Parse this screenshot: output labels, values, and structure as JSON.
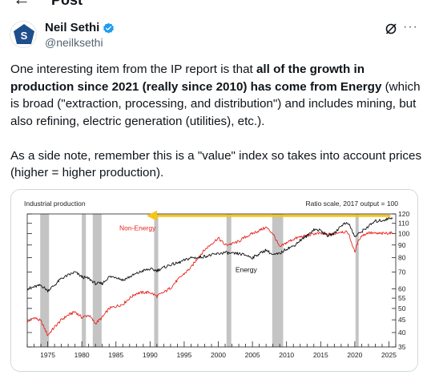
{
  "header": {
    "title": "Post",
    "back_icon": "back-arrow-icon"
  },
  "author": {
    "name": "Neil Sethi",
    "handle": "@neilksethi",
    "verified_color": "#1d9bf0"
  },
  "post": {
    "p1_lead": "One interesting item from the IP report is that ",
    "p1_bold": "all of the growth in production since 2021 (really since 2010) has come from Energy",
    "p1_tail": " (which is broad (\"extraction, processing, and distribution\") and includes mining, but also refining, electric generation (utilities), etc.).",
    "p2": "As a side note, remember this is a \"value\" index so takes into account prices (higher = higher production)."
  },
  "chart_data": {
    "type": "line",
    "title": "Industrial production",
    "subtitle": "Ratio scale, 2017 output = 100",
    "x_ticks": [
      "1975",
      "1980",
      "1985",
      "1990",
      "1995",
      "2000",
      "2005",
      "2010",
      "2015",
      "2020",
      "2025"
    ],
    "y_ticks": [
      35,
      40,
      45,
      50,
      55,
      60,
      70,
      80,
      90,
      100,
      110,
      120
    ],
    "ylim": [
      35,
      120
    ],
    "xlim": [
      1972,
      2026
    ],
    "scale": "log",
    "recessions": [
      [
        1973.9,
        1975.2
      ],
      [
        1980.0,
        1980.6
      ],
      [
        1981.6,
        1982.9
      ],
      [
        1990.6,
        1991.2
      ],
      [
        2001.2,
        2001.9
      ],
      [
        2007.9,
        2009.5
      ],
      [
        2020.1,
        2020.4
      ]
    ],
    "annotation_arrow_color": "#f5c518",
    "series": [
      {
        "name": "Non-Energy",
        "color": "#e8251f",
        "points": [
          [
            1972,
            44
          ],
          [
            1973,
            46
          ],
          [
            1974,
            44.5
          ],
          [
            1975,
            39
          ],
          [
            1976,
            42
          ],
          [
            1977,
            45
          ],
          [
            1978,
            47
          ],
          [
            1979,
            48.5
          ],
          [
            1980,
            46
          ],
          [
            1981,
            47
          ],
          [
            1982,
            43.5
          ],
          [
            1983,
            46
          ],
          [
            1984,
            50
          ],
          [
            1985,
            51
          ],
          [
            1986,
            52
          ],
          [
            1987,
            55
          ],
          [
            1988,
            57.5
          ],
          [
            1989,
            58
          ],
          [
            1990,
            58
          ],
          [
            1991,
            56
          ],
          [
            1992,
            58
          ],
          [
            1993,
            60.5
          ],
          [
            1994,
            65
          ],
          [
            1995,
            69
          ],
          [
            1996,
            73
          ],
          [
            1997,
            80
          ],
          [
            1998,
            86
          ],
          [
            1999,
            91
          ],
          [
            2000,
            96
          ],
          [
            2001,
            90
          ],
          [
            2002,
            91
          ],
          [
            2003,
            93
          ],
          [
            2004,
            97
          ],
          [
            2005,
            100
          ],
          [
            2006,
            103
          ],
          [
            2007,
            106
          ],
          [
            2008,
            100
          ],
          [
            2009,
            88
          ],
          [
            2010,
            92
          ],
          [
            2011,
            95
          ],
          [
            2012,
            97
          ],
          [
            2013,
            98
          ],
          [
            2014,
            100
          ],
          [
            2015,
            100
          ],
          [
            2016,
            99
          ],
          [
            2017,
            100
          ],
          [
            2018,
            102
          ],
          [
            2019,
            101
          ],
          [
            2020,
            84
          ],
          [
            2020.6,
            95
          ],
          [
            2021,
            98
          ],
          [
            2022,
            101
          ],
          [
            2023,
            100
          ],
          [
            2024,
            100
          ],
          [
            2025.5,
            101
          ]
        ]
      },
      {
        "name": "Energy",
        "color": "#111111",
        "points": [
          [
            1972,
            60
          ],
          [
            1973,
            61
          ],
          [
            1974,
            62
          ],
          [
            1975,
            59
          ],
          [
            1976,
            62
          ],
          [
            1977,
            66
          ],
          [
            1978,
            68
          ],
          [
            1979,
            70
          ],
          [
            1980,
            67
          ],
          [
            1981,
            66
          ],
          [
            1982,
            63
          ],
          [
            1983,
            63
          ],
          [
            1984,
            67
          ],
          [
            1985,
            67
          ],
          [
            1986,
            65
          ],
          [
            1987,
            67
          ],
          [
            1988,
            69
          ],
          [
            1989,
            71
          ],
          [
            1990,
            72
          ],
          [
            1991,
            71
          ],
          [
            1992,
            73
          ],
          [
            1993,
            75
          ],
          [
            1994,
            76
          ],
          [
            1995,
            78
          ],
          [
            1996,
            80
          ],
          [
            1997,
            80
          ],
          [
            1998,
            81
          ],
          [
            1999,
            82
          ],
          [
            2000,
            83
          ],
          [
            2001,
            84
          ],
          [
            2002,
            83
          ],
          [
            2003,
            83
          ],
          [
            2004,
            82
          ],
          [
            2005,
            80
          ],
          [
            2006,
            83
          ],
          [
            2007,
            86
          ],
          [
            2008,
            82
          ],
          [
            2009,
            83
          ],
          [
            2010,
            87
          ],
          [
            2011,
            89
          ],
          [
            2012,
            94
          ],
          [
            2013,
            98
          ],
          [
            2014,
            104
          ],
          [
            2015,
            103
          ],
          [
            2016,
            98
          ],
          [
            2017,
            100
          ],
          [
            2018,
            108
          ],
          [
            2019,
            111
          ],
          [
            2020,
            97
          ],
          [
            2020.6,
            100
          ],
          [
            2021,
            102
          ],
          [
            2022,
            107
          ],
          [
            2023,
            112
          ],
          [
            2024,
            113
          ],
          [
            2025.5,
            116
          ]
        ]
      }
    ],
    "labels": [
      {
        "series": "Non-Energy",
        "text": "Non-Energy",
        "x": 1985.5,
        "y": 103
      },
      {
        "series": "Energy",
        "text": "Energy",
        "x": 2002.5,
        "y": 70
      }
    ]
  }
}
